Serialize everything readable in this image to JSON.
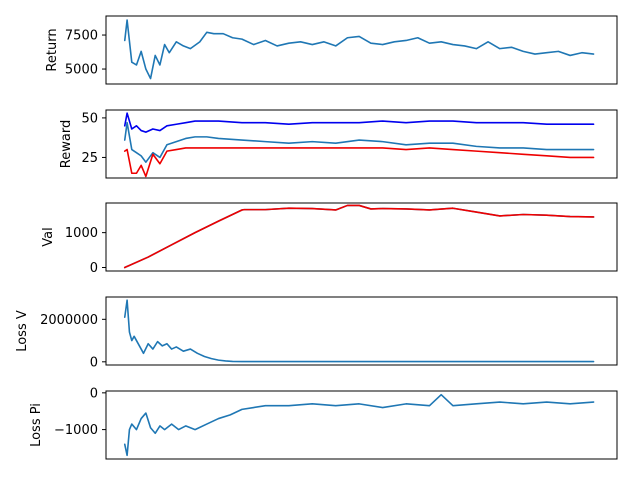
{
  "colors": {
    "blue": "#1f77b4",
    "darkblue": "#0000ee",
    "red": "#ee0000"
  },
  "chart_data": [
    {
      "type": "line",
      "ylabel": "Return",
      "xlim": [
        -8,
        210
      ],
      "ylim": [
        3900,
        8900
      ],
      "yticks": [
        5000,
        7500
      ],
      "ytick_labels": [
        "5000",
        "7500"
      ],
      "grid": false,
      "series": [
        {
          "color": "#1f77b4",
          "x": [
            0,
            1,
            3,
            5,
            7,
            9,
            11,
            13,
            15,
            17,
            19,
            22,
            25,
            28,
            32,
            35,
            38,
            42,
            46,
            50,
            55,
            60,
            65,
            70,
            75,
            80,
            85,
            90,
            95,
            100,
            105,
            110,
            115,
            120,
            125,
            130,
            135,
            140,
            145,
            150,
            155,
            160,
            165,
            170,
            175,
            180,
            185,
            190,
            195,
            200
          ],
          "values": [
            7100,
            8600,
            5500,
            5300,
            6300,
            5000,
            4300,
            6000,
            5300,
            6800,
            6200,
            7000,
            6700,
            6500,
            7000,
            7700,
            7600,
            7600,
            7300,
            7200,
            6800,
            7100,
            6700,
            6900,
            7000,
            6800,
            7000,
            6700,
            7300,
            7400,
            6900,
            6800,
            7000,
            7100,
            7300,
            6900,
            7000,
            6800,
            6700,
            6500,
            7000,
            6500,
            6600,
            6300,
            6100,
            6200,
            6300,
            6000,
            6200,
            6100
          ]
        }
      ]
    },
    {
      "type": "line",
      "ylabel": "Reward",
      "xlim": [
        -8,
        210
      ],
      "ylim": [
        12,
        55
      ],
      "yticks": [
        25,
        50
      ],
      "ytick_labels": [
        "25",
        "50"
      ],
      "grid": false,
      "series": [
        {
          "color": "#0000ee",
          "x": [
            0,
            1,
            3,
            5,
            7,
            9,
            12,
            15,
            18,
            22,
            26,
            30,
            35,
            40,
            50,
            60,
            70,
            80,
            90,
            100,
            110,
            120,
            130,
            140,
            150,
            160,
            170,
            180,
            190,
            200
          ],
          "values": [
            45,
            53,
            43,
            45,
            42,
            41,
            43,
            42,
            45,
            46,
            47,
            48,
            48,
            48,
            47,
            47,
            46,
            47,
            47,
            47,
            48,
            47,
            48,
            48,
            47,
            47,
            47,
            46,
            46,
            46
          ]
        },
        {
          "color": "#1f77b4",
          "x": [
            0,
            1,
            3,
            5,
            7,
            9,
            12,
            15,
            18,
            22,
            26,
            30,
            35,
            40,
            50,
            60,
            70,
            80,
            90,
            100,
            110,
            120,
            130,
            140,
            150,
            160,
            170,
            180,
            190,
            200
          ],
          "values": [
            36,
            47,
            30,
            28,
            26,
            22,
            28,
            25,
            33,
            35,
            37,
            38,
            38,
            37,
            36,
            35,
            34,
            35,
            34,
            36,
            35,
            33,
            34,
            34,
            32,
            31,
            31,
            30,
            30,
            30
          ]
        },
        {
          "color": "#ee0000",
          "x": [
            0,
            1,
            3,
            5,
            7,
            9,
            12,
            15,
            18,
            22,
            26,
            30,
            35,
            40,
            50,
            60,
            70,
            80,
            90,
            100,
            110,
            120,
            130,
            140,
            150,
            160,
            170,
            180,
            190,
            200
          ],
          "values": [
            29,
            30,
            15,
            15,
            20,
            13,
            27,
            21,
            29,
            30,
            31,
            31,
            31,
            31,
            31,
            31,
            31,
            31,
            31,
            31,
            31,
            30,
            31,
            30,
            29,
            28,
            27,
            26,
            25,
            25
          ]
        }
      ]
    },
    {
      "type": "line",
      "ylabel": "Val",
      "xlim": [
        -8,
        210
      ],
      "ylim": [
        -100,
        1850
      ],
      "yticks": [
        0,
        1000
      ],
      "ytick_labels": [
        "0",
        "1000"
      ],
      "grid": false,
      "series": [
        {
          "color": "#1f77b4",
          "x": [
            0,
            10,
            20,
            30,
            40,
            50,
            51,
            60,
            70,
            80,
            90,
            95,
            100,
            105,
            110,
            120,
            130,
            140,
            150,
            160,
            170,
            180,
            190,
            200
          ],
          "values": [
            0,
            300,
            650,
            1000,
            1330,
            1650,
            1660,
            1660,
            1700,
            1690,
            1650,
            1780,
            1780,
            1680,
            1690,
            1680,
            1650,
            1700,
            1590,
            1480,
            1520,
            1500,
            1460,
            1450
          ]
        },
        {
          "color": "#ee0000",
          "x": [
            0,
            10,
            20,
            30,
            40,
            50,
            51,
            60,
            70,
            80,
            90,
            95,
            100,
            105,
            110,
            120,
            130,
            140,
            150,
            160,
            170,
            180,
            190,
            200
          ],
          "values": [
            0,
            300,
            650,
            1000,
            1330,
            1650,
            1660,
            1660,
            1700,
            1690,
            1650,
            1780,
            1780,
            1680,
            1690,
            1680,
            1650,
            1700,
            1590,
            1480,
            1520,
            1500,
            1460,
            1450
          ]
        }
      ]
    },
    {
      "type": "line",
      "ylabel": "Loss V",
      "xlim": [
        -8,
        210
      ],
      "ylim": [
        -150000,
        3050000
      ],
      "yticks": [
        0,
        2000000
      ],
      "ytick_labels": [
        "0",
        "2000000"
      ],
      "grid": false,
      "series": [
        {
          "color": "#1f77b4",
          "x": [
            0,
            1,
            2,
            3,
            4,
            6,
            8,
            10,
            12,
            14,
            16,
            18,
            20,
            22,
            25,
            28,
            31,
            34,
            37,
            40,
            43,
            46,
            50,
            55,
            60,
            80,
            100,
            120,
            140,
            160,
            180,
            200
          ],
          "values": [
            2100000,
            2900000,
            1400000,
            1000000,
            1200000,
            800000,
            400000,
            850000,
            600000,
            950000,
            750000,
            850000,
            600000,
            700000,
            500000,
            600000,
            400000,
            250000,
            150000,
            80000,
            40000,
            20000,
            10000,
            10000,
            10000,
            10000,
            10000,
            10000,
            10000,
            10000,
            10000,
            10000
          ]
        }
      ]
    },
    {
      "type": "line",
      "ylabel": "Loss Pi",
      "xlim": [
        -8,
        210
      ],
      "ylim": [
        -1800,
        50
      ],
      "yticks": [
        -1000,
        0
      ],
      "ytick_labels": [
        "−1000",
        "0"
      ],
      "grid": false,
      "series": [
        {
          "color": "#1f77b4",
          "x": [
            0,
            1,
            2,
            3,
            5,
            7,
            9,
            11,
            13,
            15,
            17,
            20,
            23,
            26,
            30,
            35,
            40,
            45,
            50,
            55,
            60,
            70,
            80,
            90,
            100,
            110,
            120,
            130,
            135,
            140,
            150,
            160,
            170,
            180,
            190,
            200
          ],
          "values": [
            -1400,
            -1700,
            -1000,
            -850,
            -1000,
            -700,
            -550,
            -950,
            -1100,
            -900,
            -1000,
            -850,
            -1000,
            -900,
            -1000,
            -850,
            -700,
            -600,
            -450,
            -400,
            -350,
            -350,
            -300,
            -350,
            -300,
            -400,
            -300,
            -350,
            -50,
            -350,
            -300,
            -250,
            -300,
            -250,
            -300,
            -250
          ]
        }
      ]
    }
  ]
}
